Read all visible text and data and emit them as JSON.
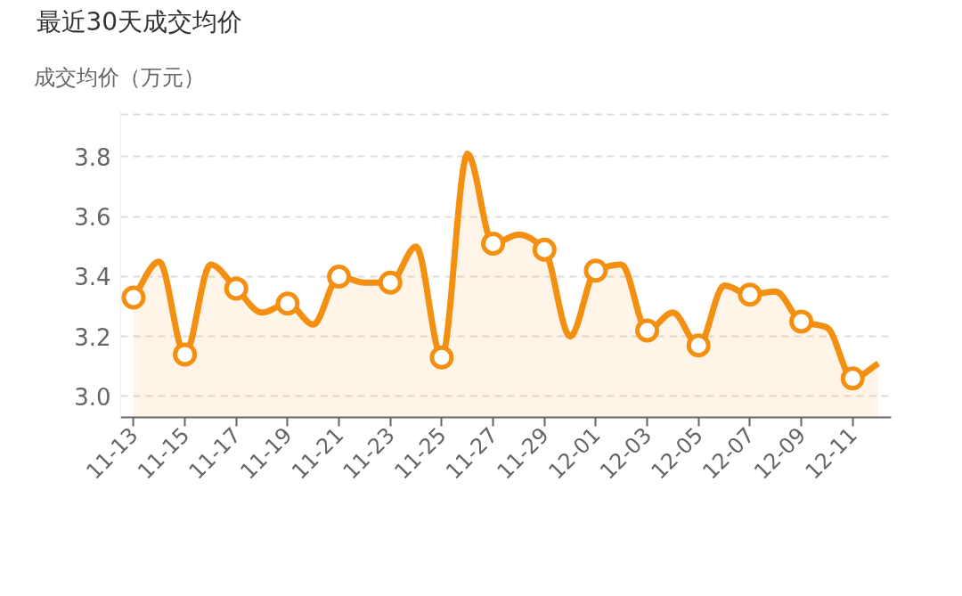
{
  "chart_data": {
    "type": "area",
    "title": "最近30天成交均价",
    "ylabel": "成交均价（万元）",
    "categories": [
      "11-13",
      null,
      "11-15",
      null,
      "11-17",
      null,
      "11-19",
      null,
      "11-21",
      null,
      "11-23",
      null,
      "11-25",
      null,
      "11-27",
      null,
      "11-29",
      null,
      "12-01",
      null,
      "12-03",
      null,
      "12-05",
      null,
      "12-07",
      null,
      "12-09",
      null,
      "12-11",
      null
    ],
    "series": [
      {
        "color": "#f39012",
        "values": [
          3.33,
          3.45,
          3.14,
          3.44,
          3.36,
          3.28,
          3.31,
          3.24,
          3.4,
          3.38,
          3.38,
          3.5,
          3.13,
          3.81,
          3.51,
          3.54,
          3.49,
          3.2,
          3.42,
          3.44,
          3.22,
          3.28,
          3.17,
          3.37,
          3.34,
          3.35,
          3.25,
          3.23,
          3.06,
          3.11
        ]
      }
    ],
    "ylim": [
      2.93,
      3.95
    ],
    "yticks": [
      {
        "value": 3.0,
        "label": "3.0"
      },
      3.2,
      3.4,
      3.6,
      3.8,
      {
        "value": 3.94,
        "label": null
      }
    ],
    "grid": "y",
    "marker": "circle",
    "line_style": "solid"
  }
}
